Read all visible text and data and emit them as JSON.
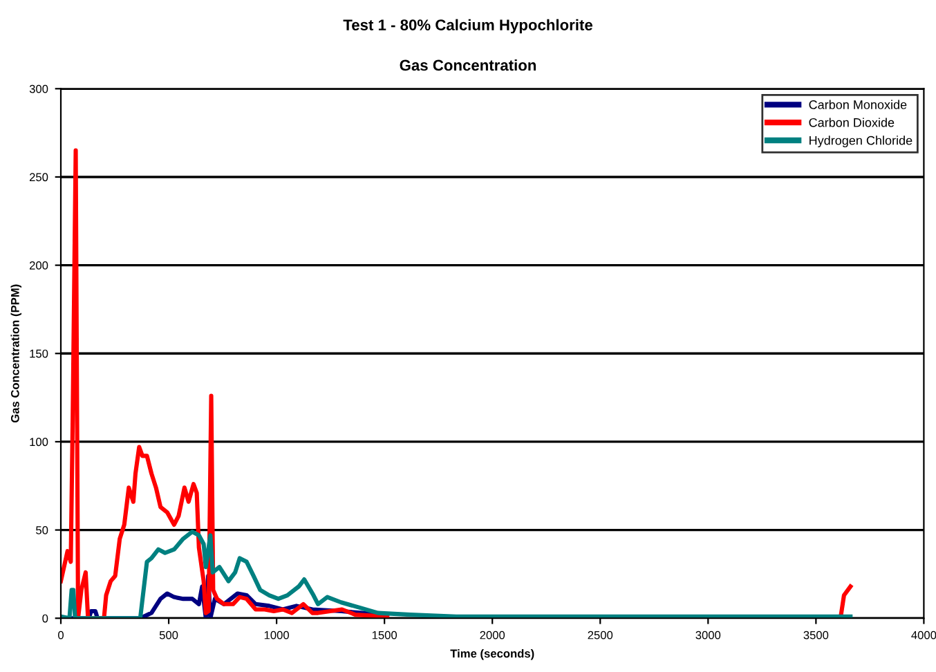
{
  "chart_data": {
    "type": "line",
    "title": "Test 1 - 80% Calcium Hypochlorite",
    "subtitle": "Gas Concentration",
    "xlabel": "Time (seconds)",
    "ylabel": "Gas Concentration (PPM)",
    "xlim": [
      0,
      4000
    ],
    "xticks": [
      0,
      500,
      1000,
      1500,
      2000,
      2500,
      3000,
      3500,
      4000
    ],
    "ylim": [
      0,
      300
    ],
    "yticks": [
      0,
      50,
      100,
      150,
      200,
      250,
      300
    ],
    "grid": "y",
    "legend": "top right",
    "marker": "none",
    "line_style": "solid",
    "series": [
      {
        "name": "Carbon Monoxide",
        "color": "#000080",
        "x": [
          0,
          130,
          140,
          160,
          170,
          368,
          420,
          462,
          493,
          525,
          567,
          609,
          640,
          655,
          672,
          683,
          693,
          714,
          756,
          819,
          861,
          903,
          966,
          1029,
          1092,
          1166,
          1300,
          1500
        ],
        "values": [
          0,
          0,
          4,
          4,
          0,
          0,
          3,
          11,
          14,
          12,
          11,
          11,
          8,
          18,
          0,
          24,
          0,
          11,
          8,
          14,
          13,
          8,
          7,
          5,
          7,
          5,
          4,
          2
        ]
      },
      {
        "name": "Carbon Dioxide",
        "color": "#ff0000",
        "x": [
          0,
          31,
          46,
          55,
          69,
          80,
          95,
          115,
          126,
          200,
          210,
          231,
          252,
          273,
          294,
          315,
          336,
          346,
          363,
          378,
          399,
          420,
          441,
          462,
          493,
          525,
          546,
          573,
          592,
          615,
          630,
          640,
          662,
          672,
          685,
          697,
          706,
          724,
          756,
          798,
          829,
          861,
          903,
          945,
          987,
          1029,
          1071,
          1124,
          1166,
          1192,
          1303,
          1365,
          1513,
          2000,
          2050,
          3600,
          3615,
          3630,
          3660
        ],
        "values": [
          21,
          38,
          32,
          113,
          265,
          0,
          16,
          26,
          0,
          0,
          13,
          21,
          24,
          45,
          53,
          74,
          66,
          82,
          97,
          92,
          92,
          82,
          74,
          63,
          60,
          53,
          58,
          74,
          66,
          76,
          71,
          40,
          21,
          3,
          4,
          126,
          16,
          11,
          8,
          8,
          12,
          11,
          5,
          5,
          4,
          5,
          3,
          8,
          3,
          3,
          5,
          2,
          1,
          null,
          0,
          0,
          1,
          13,
          18
        ]
      },
      {
        "name": "Hydrogen Chloride",
        "color": "#008080",
        "x": [
          0,
          40,
          50,
          58,
          66,
          368,
          399,
          420,
          452,
          483,
          525,
          567,
          609,
          640,
          662,
          672,
          693,
          704,
          735,
          777,
          808,
          829,
          861,
          893,
          924,
          966,
          1008,
          1050,
          1103,
          1128,
          1171,
          1192,
          1235,
          1299,
          1385,
          1470,
          1620,
          1833,
          3660
        ],
        "values": [
          1,
          0,
          16,
          16,
          0,
          0,
          32,
          34,
          39,
          37,
          39,
          45,
          49,
          47,
          42,
          29,
          47,
          26,
          29,
          21,
          26,
          34,
          32,
          24,
          16,
          13,
          11,
          13,
          18,
          22,
          13,
          8,
          12,
          9,
          6,
          3,
          2,
          1,
          1
        ]
      }
    ]
  }
}
